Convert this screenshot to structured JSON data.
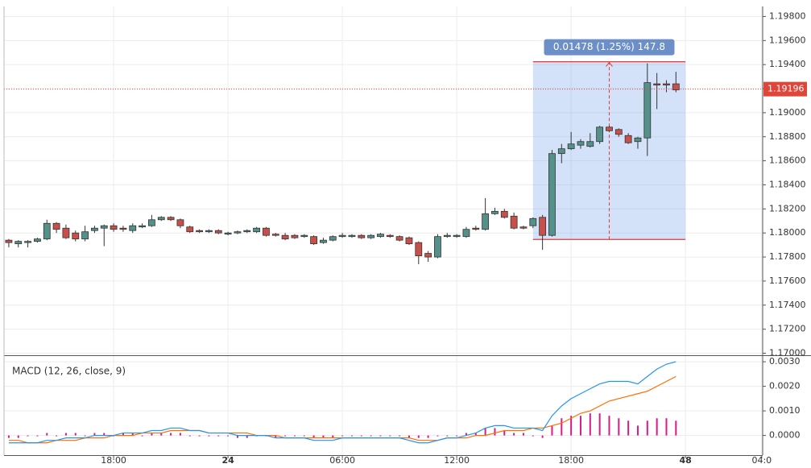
{
  "chart_data": [
    {
      "type": "candlestick",
      "x": [
        12.5,
        13,
        13.5,
        14,
        14.5,
        15,
        15.5,
        16,
        16.5,
        17,
        17.5,
        18,
        18.5,
        19,
        19.5,
        20,
        20.5,
        21,
        21.5,
        22,
        22.5,
        23,
        23.5,
        24,
        24.5,
        25,
        25.5,
        26,
        26.5,
        27,
        27.5,
        28,
        28.5,
        29,
        29.5,
        30,
        30.5,
        31,
        31.5,
        32,
        32.5,
        33,
        33.5,
        34,
        34.5,
        35,
        35.5,
        36,
        36.5,
        37,
        37.5,
        38,
        38.5,
        39,
        39.5,
        40,
        40.5,
        41,
        41.5,
        42,
        42.5,
        43,
        43.5,
        44,
        44.5,
        45,
        45.5,
        46,
        46.5,
        47,
        47.5
      ],
      "open": [
        1.1794,
        1.1791,
        1.1792,
        1.1793,
        1.1795,
        1.1808,
        1.1804,
        1.18,
        1.1795,
        1.1802,
        1.1804,
        1.1806,
        1.1804,
        1.1802,
        1.1805,
        1.1806,
        1.1811,
        1.1813,
        1.1811,
        1.1805,
        1.1802,
        1.1801,
        1.1802,
        1.1799,
        1.18,
        1.1801,
        1.1801,
        1.1804,
        1.1799,
        1.1798,
        1.1798,
        1.1797,
        1.1797,
        1.1792,
        1.1794,
        1.1797,
        1.1797,
        1.1798,
        1.1796,
        1.1797,
        1.1798,
        1.1797,
        1.1796,
        1.1792,
        1.1783,
        1.178,
        1.1797,
        1.1797,
        1.1797,
        1.1804,
        1.1803,
        1.1816,
        1.1818,
        1.1814,
        1.1805,
        1.1806,
        1.1813,
        1.1798,
        1.1866,
        1.187,
        1.1873,
        1.1872,
        1.1876,
        1.1888,
        1.1886,
        1.1881,
        1.1876,
        1.1879,
        1.1924,
        1.1924,
        1.1924
      ],
      "high": [
        1.1795,
        1.1794,
        1.1794,
        1.1796,
        1.1811,
        1.1809,
        1.1807,
        1.1802,
        1.1806,
        1.1806,
        1.1807,
        1.1808,
        1.1806,
        1.1808,
        1.1808,
        1.1815,
        1.1814,
        1.1814,
        1.1812,
        1.1806,
        1.1803,
        1.1803,
        1.1803,
        1.1801,
        1.1802,
        1.1803,
        1.1805,
        1.1805,
        1.18,
        1.18,
        1.1799,
        1.1799,
        1.1798,
        1.1796,
        1.1798,
        1.18,
        1.1799,
        1.1799,
        1.1799,
        1.18,
        1.1799,
        1.1798,
        1.1797,
        1.1793,
        1.1785,
        1.1799,
        1.18,
        1.1799,
        1.1805,
        1.1806,
        1.1829,
        1.1821,
        1.182,
        1.1817,
        1.1806,
        1.1813,
        1.1815,
        1.1869,
        1.1874,
        1.1884,
        1.1878,
        1.1883,
        1.1889,
        1.1889,
        1.1887,
        1.1883,
        1.188,
        1.1941,
        1.1933,
        1.1927,
        1.1934
      ],
      "low": [
        1.1788,
        1.1788,
        1.1788,
        1.1792,
        1.1794,
        1.18,
        1.1795,
        1.1793,
        1.1793,
        1.18,
        1.1789,
        1.1801,
        1.1801,
        1.18,
        1.1804,
        1.1805,
        1.181,
        1.181,
        1.1804,
        1.18,
        1.18,
        1.18,
        1.1799,
        1.1798,
        1.1799,
        1.18,
        1.18,
        1.1797,
        1.1797,
        1.1794,
        1.1795,
        1.1796,
        1.179,
        1.1791,
        1.1793,
        1.1796,
        1.1796,
        1.1795,
        1.1795,
        1.1796,
        1.1796,
        1.1793,
        1.179,
        1.1774,
        1.1776,
        1.1779,
        1.1796,
        1.1796,
        1.1796,
        1.1802,
        1.1802,
        1.1815,
        1.1812,
        1.1803,
        1.1803,
        1.1804,
        1.1786,
        1.1797,
        1.1858,
        1.1869,
        1.187,
        1.1871,
        1.1874,
        1.1884,
        1.188,
        1.1874,
        1.187,
        1.1864,
        1.1903,
        1.1917,
        1.1917
      ],
      "close": [
        1.1792,
        1.1793,
        1.1793,
        1.1795,
        1.1808,
        1.1803,
        1.1796,
        1.1795,
        1.1801,
        1.1804,
        1.1806,
        1.1803,
        1.1803,
        1.1806,
        1.1806,
        1.1811,
        1.1813,
        1.1811,
        1.1806,
        1.1801,
        1.1801,
        1.1802,
        1.18,
        1.18,
        1.1801,
        1.1802,
        1.1804,
        1.1798,
        1.1798,
        1.1795,
        1.1796,
        1.1798,
        1.1791,
        1.1794,
        1.1797,
        1.1798,
        1.1798,
        1.1796,
        1.1798,
        1.1799,
        1.1797,
        1.1794,
        1.1791,
        1.1781,
        1.178,
        1.1797,
        1.1798,
        1.1798,
        1.1803,
        1.1803,
        1.1816,
        1.1818,
        1.1813,
        1.1804,
        1.1804,
        1.1812,
        1.1798,
        1.1866,
        1.187,
        1.1874,
        1.1876,
        1.1876,
        1.1888,
        1.1885,
        1.1882,
        1.1875,
        1.1879,
        1.1925,
        1.1923,
        1.1923,
        1.1919
      ],
      "up_color": "#53918a",
      "down_color": "#c7504b",
      "xlim": [
        12.25,
        52.05
      ],
      "xticks": [
        {
          "value": 18,
          "label": "18:00"
        },
        24,
        {
          "value": 30,
          "label": "06:00"
        },
        {
          "value": 36,
          "label": "12:00"
        },
        {
          "value": 42,
          "label": "18:00"
        },
        48,
        {
          "value": 52,
          "label": "04:0"
        }
      ],
      "ylim": [
        1.1699,
        1.1987
      ],
      "yticks": [
        {
          "value": 1.17,
          "label": "1.17000"
        },
        {
          "value": 1.172,
          "label": "1.17200"
        },
        {
          "value": 1.174,
          "label": "1.17400"
        },
        {
          "value": 1.176,
          "label": "1.17600"
        },
        {
          "value": 1.178,
          "label": "1.17800"
        },
        {
          "value": 1.18,
          "label": "1.18000"
        },
        {
          "value": 1.182,
          "label": "1.18200"
        },
        {
          "value": 1.184,
          "label": "1.18400"
        },
        {
          "value": 1.186,
          "label": "1.18600"
        },
        {
          "value": 1.188,
          "label": "1.18800"
        },
        {
          "value": 1.19,
          "label": "1.19000"
        },
        {
          "value": 1.192,
          "label": "1.19200"
        },
        {
          "value": 1.194,
          "label": "1.19400"
        },
        {
          "value": 1.196,
          "label": "1.19600"
        },
        {
          "value": 1.198,
          "label": "1.19800"
        }
      ],
      "grid": true,
      "last_price": 1.19196,
      "last_price_color": "#e0453a",
      "measure": {
        "x": [
          40,
          48
        ],
        "y": [
          1.17946,
          1.19424
        ],
        "label": "0.01478 (1.25%) 147.8"
      }
    },
    {
      "type": "macd",
      "title": "MACD (12, 26, close, 9)",
      "ylim": [
        -0.0008,
        0.0032
      ],
      "yticks": [
        {
          "value": 0,
          "label": "0.0000"
        },
        {
          "value": 0.001,
          "label": "0.0010"
        },
        {
          "value": 0.002,
          "label": "0.0020"
        },
        {
          "value": 0.003,
          "label": "0.0030"
        }
      ],
      "grid": true,
      "macd": {
        "color": "#2196f3",
        "values": [
          -0.0003,
          -0.0003,
          -0.0003,
          -0.0003,
          -0.0002,
          -0.0002,
          -0.0001,
          -0.0001,
          -0.0001,
          0.0,
          0.0,
          0.0,
          0.0001,
          0.0001,
          0.0001,
          0.0002,
          0.0002,
          0.0003,
          0.0003,
          0.0002,
          0.0002,
          0.0001,
          0.0001,
          0.0001,
          0.0,
          0.0,
          0.0,
          0.0,
          -0.0001,
          -0.0001,
          -0.0001,
          -0.0001,
          -0.0002,
          -0.0002,
          -0.0002,
          -0.0001,
          -0.0001,
          -0.0001,
          -0.0001,
          -0.0001,
          -0.0001,
          -0.0001,
          -0.0002,
          -0.0003,
          -0.0003,
          -0.0002,
          -0.0001,
          -0.0001,
          0.0,
          0.0001,
          0.0003,
          0.0004,
          0.0004,
          0.0003,
          0.0003,
          0.0003,
          0.0002,
          0.0008,
          0.0012,
          0.0015,
          0.0017,
          0.0019,
          0.0021,
          0.0022,
          0.0022,
          0.0022,
          0.0021,
          0.0024,
          0.0027,
          0.0029,
          0.003
        ]
      },
      "signal": {
        "color": "#ff6d00",
        "values": [
          -0.0002,
          -0.0002,
          -0.0003,
          -0.0003,
          -0.0003,
          -0.0002,
          -0.0002,
          -0.0002,
          -0.0001,
          -0.0001,
          -0.0001,
          0.0,
          0.0,
          0.0,
          0.0001,
          0.0001,
          0.0001,
          0.0002,
          0.0002,
          0.0002,
          0.0002,
          0.0001,
          0.0001,
          0.0001,
          0.0001,
          0.0001,
          0.0,
          0.0,
          0.0,
          -0.0001,
          -0.0001,
          -0.0001,
          -0.0001,
          -0.0001,
          -0.0001,
          -0.0001,
          -0.0001,
          -0.0001,
          -0.0001,
          -0.0001,
          -0.0001,
          -0.0001,
          -0.0001,
          -0.0002,
          -0.0002,
          -0.0002,
          -0.0001,
          -0.0001,
          -0.0001,
          0.0,
          0.0,
          0.0001,
          0.0002,
          0.0002,
          0.0002,
          0.0003,
          0.0003,
          0.0004,
          0.0005,
          0.0007,
          0.0009,
          0.001,
          0.0012,
          0.0014,
          0.0015,
          0.0016,
          0.0017,
          0.0018,
          0.002,
          0.0022,
          0.0024
        ]
      },
      "histogram": {
        "color": "#d81b8c",
        "values": [
          -0.0001,
          -0.0001,
          0.0,
          0.0,
          0.0001,
          0.0,
          0.0001,
          0.0001,
          0.0,
          0.0001,
          0.0001,
          0.0,
          0.0001,
          0.0001,
          0.0,
          0.0001,
          0.0001,
          0.0001,
          0.0001,
          0.0,
          0.0,
          0.0,
          0.0,
          0.0,
          -0.0001,
          -0.0001,
          0.0,
          0.0,
          -0.0001,
          0.0,
          0.0,
          0.0,
          -0.0001,
          -0.0001,
          -0.0001,
          0.0,
          0.0,
          0.0,
          0.0,
          0.0,
          0.0,
          0.0,
          -0.0001,
          -0.0001,
          -0.0001,
          0.0,
          0.0,
          0.0,
          0.0001,
          0.0001,
          0.0003,
          0.0003,
          0.0002,
          0.0001,
          0.0001,
          0.0,
          -0.0001,
          0.0004,
          0.0007,
          0.0008,
          0.0008,
          0.0009,
          0.0009,
          0.0008,
          0.0007,
          0.0006,
          0.0004,
          0.0006,
          0.0007,
          0.0007,
          0.0006
        ]
      }
    }
  ]
}
